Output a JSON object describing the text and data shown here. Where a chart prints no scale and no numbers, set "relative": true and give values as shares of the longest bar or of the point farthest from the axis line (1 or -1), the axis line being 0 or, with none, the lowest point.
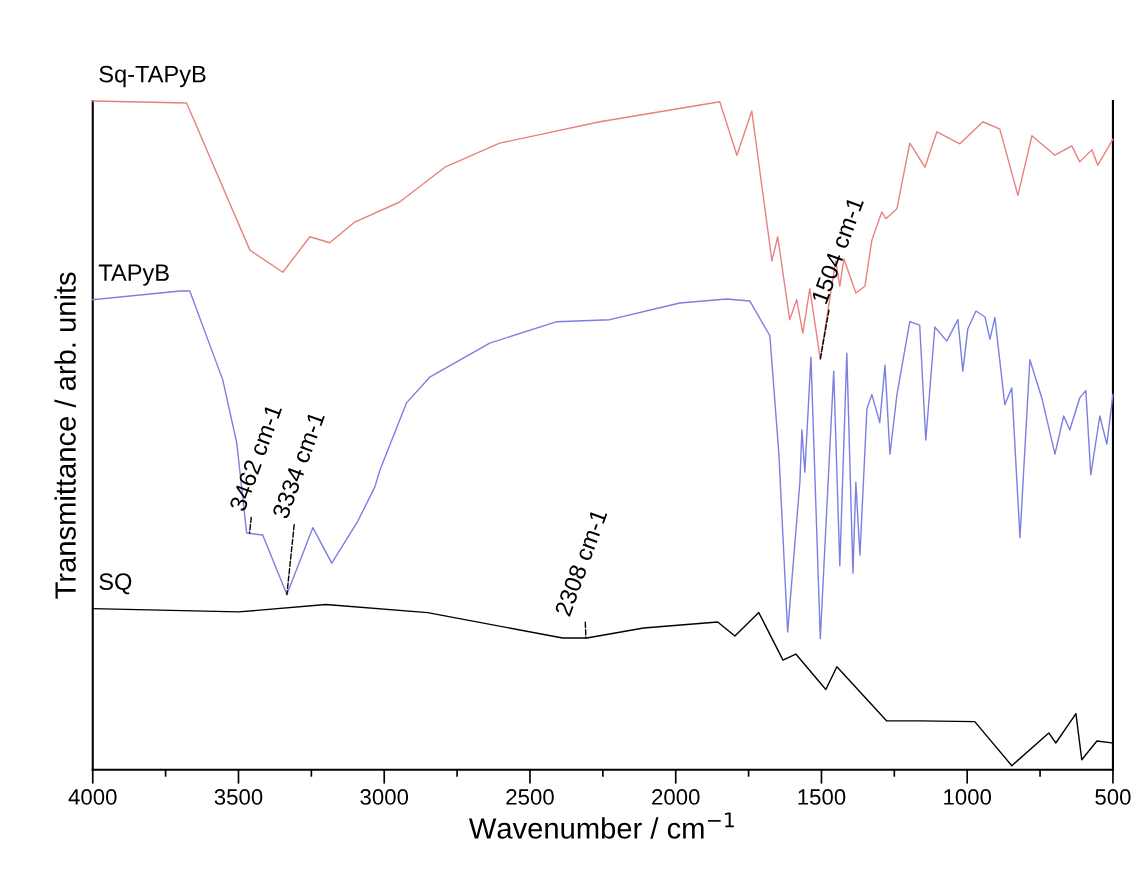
{
  "chart_data": {
    "type": "line",
    "relative": true,
    "xlabel": "Wavenumber / cm$^{−1}$",
    "ylabel": "Transmittance / arb. units",
    "xlim": [
      4000,
      500
    ],
    "xticks": [
      4000,
      3500,
      3000,
      2500,
      2000,
      1500,
      1000,
      500
    ],
    "grid": false,
    "legend": false,
    "marker": "none",
    "line_style": "solid",
    "series": [
      {
        "name": "Sq-TAPyB",
        "color": "#e8817f",
        "x": [
          4000,
          3678,
          3461,
          3348,
          3255,
          3187,
          3101,
          2947,
          2792,
          2604,
          2260,
          1849,
          1790,
          1739,
          1670,
          1650,
          1609,
          1585,
          1564,
          1540,
          1504,
          1451,
          1437,
          1423,
          1382,
          1351,
          1327,
          1293,
          1279,
          1241,
          1197,
          1145,
          1104,
          1025,
          946,
          888,
          826,
          778,
          699,
          641,
          614,
          572,
          552,
          500
        ],
        "values": [
          1.0,
          0.997,
          0.777,
          0.744,
          0.797,
          0.788,
          0.819,
          0.849,
          0.901,
          0.937,
          0.969,
          0.999,
          0.919,
          0.985,
          0.761,
          0.797,
          0.673,
          0.703,
          0.653,
          0.719,
          0.614,
          0.761,
          0.723,
          0.764,
          0.713,
          0.723,
          0.792,
          0.834,
          0.824,
          0.839,
          0.937,
          0.901,
          0.954,
          0.936,
          0.969,
          0.958,
          0.859,
          0.948,
          0.919,
          0.933,
          0.909,
          0.927,
          0.904,
          0.943
        ]
      },
      {
        "name": "TAPyB",
        "color": "#7b7fe0",
        "x": [
          4000,
          3700,
          3667,
          3554,
          3506,
          3472,
          3417,
          3334,
          3245,
          3180,
          3094,
          3032,
          3015,
          2923,
          2844,
          2638,
          2408,
          2226,
          1986,
          1825,
          1746,
          1677,
          1646,
          1616,
          1574,
          1567,
          1557,
          1536,
          1504,
          1458,
          1437,
          1413,
          1392,
          1382,
          1368,
          1344,
          1327,
          1300,
          1282,
          1265,
          1241,
          1197,
          1163,
          1142,
          1111,
          1070,
          1032,
          1015,
          998,
          970,
          939,
          922,
          905,
          871,
          847,
          819,
          785,
          744,
          699,
          669,
          648,
          614,
          593,
          576,
          545,
          521,
          500
        ],
        "values": [
          0.703,
          0.716,
          0.716,
          0.583,
          0.489,
          0.354,
          0.351,
          0.262,
          0.362,
          0.309,
          0.369,
          0.423,
          0.448,
          0.549,
          0.587,
          0.638,
          0.67,
          0.673,
          0.698,
          0.704,
          0.701,
          0.649,
          0.472,
          0.206,
          0.43,
          0.508,
          0.445,
          0.617,
          0.196,
          0.596,
          0.305,
          0.623,
          0.294,
          0.43,
          0.321,
          0.54,
          0.561,
          0.519,
          0.605,
          0.472,
          0.561,
          0.67,
          0.665,
          0.493,
          0.662,
          0.641,
          0.673,
          0.596,
          0.659,
          0.686,
          0.677,
          0.644,
          0.676,
          0.546,
          0.571,
          0.347,
          0.613,
          0.556,
          0.472,
          0.529,
          0.508,
          0.556,
          0.567,
          0.441,
          0.529,
          0.487,
          0.561
        ]
      },
      {
        "name": "SQ",
        "color": "#000000",
        "x": [
          4000,
          3500,
          3200,
          2851,
          2388,
          2305,
          2110,
          1856,
          1797,
          1715,
          1632,
          1588,
          1485,
          1447,
          1276,
          1159,
          974,
          847,
          720,
          696,
          627,
          607,
          555,
          500
        ],
        "values": [
          0.241,
          0.236,
          0.247,
          0.235,
          0.197,
          0.197,
          0.212,
          0.221,
          0.2,
          0.235,
          0.164,
          0.173,
          0.12,
          0.154,
          0.073,
          0.073,
          0.072,
          0.006,
          0.055,
          0.04,
          0.084,
          0.015,
          0.043,
          0.04
        ]
      }
    ],
    "annotations": [
      {
        "text": "3462 cm-1",
        "x": 3462,
        "y": 0.354
      },
      {
        "text": "3334 cm-1",
        "x": 3334,
        "y": 0.262
      },
      {
        "text": "2308 cm-1",
        "x": 2308,
        "y": 0.197
      },
      {
        "text": "1504 cm-1",
        "x": 1504,
        "y": 0.614
      }
    ]
  }
}
